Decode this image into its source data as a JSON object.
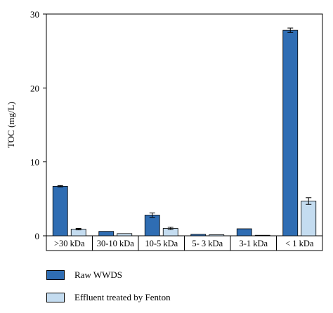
{
  "chart_data": {
    "type": "bar",
    "title": "",
    "xlabel": "",
    "ylabel": "TOC (mg/L)",
    "ylim": [
      0,
      30
    ],
    "yticks": [
      0,
      10,
      20,
      30
    ],
    "grid": false,
    "legend_placement": "bottom-left",
    "categories": [
      ">30 kDa",
      "30-10 kDa",
      "10-5 kDa",
      "5- 3 kDa",
      "3-1 kDa",
      "< 1 kDa"
    ],
    "series": [
      {
        "name": "Raw WWDS",
        "color": "#2f6db3",
        "values": [
          6.7,
          0.6,
          2.8,
          0.2,
          0.95,
          27.8
        ],
        "errors": [
          0.1,
          0.0,
          0.3,
          0.0,
          0.0,
          0.3
        ]
      },
      {
        "name": "Effluent treated by Fenton",
        "color": "#c4dcf0",
        "values": [
          0.9,
          0.3,
          1.0,
          0.15,
          0.05,
          4.7
        ],
        "errors": [
          0.1,
          0.0,
          0.15,
          0.0,
          0.0,
          0.45
        ]
      }
    ]
  }
}
